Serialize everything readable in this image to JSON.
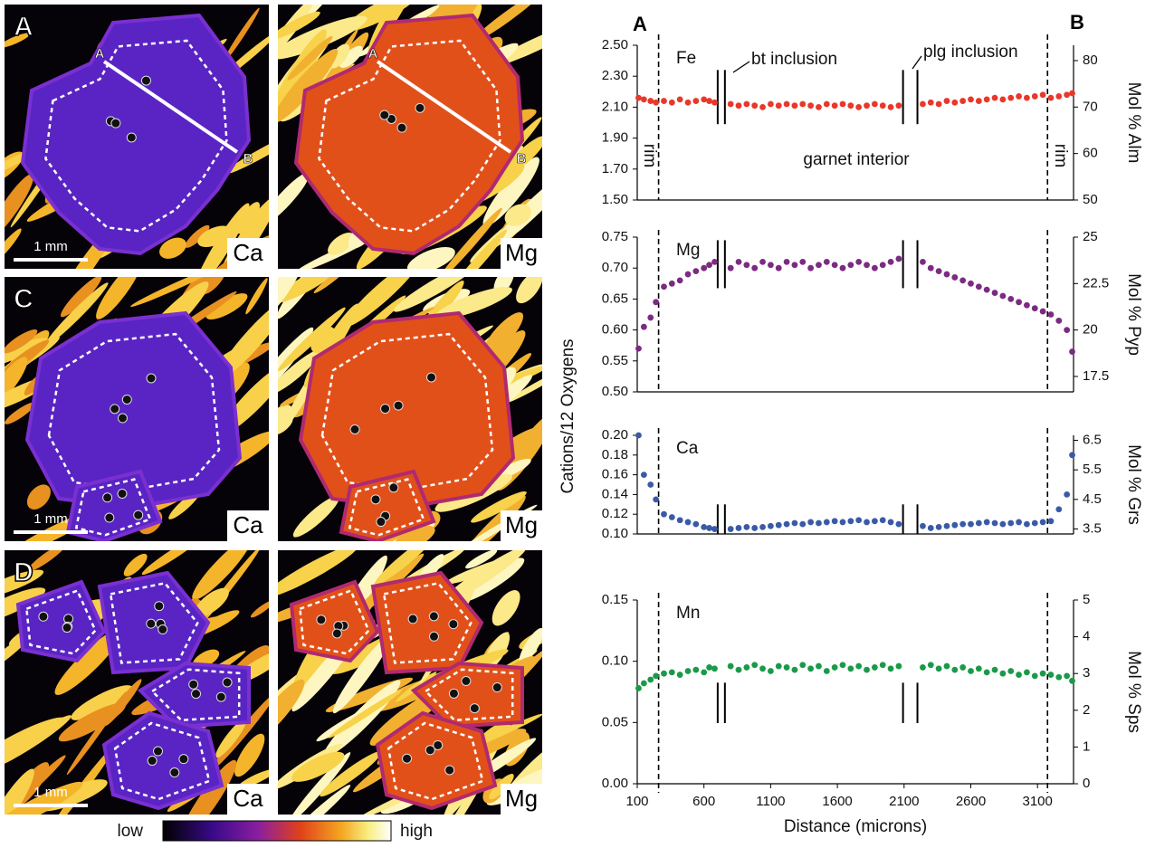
{
  "images": {
    "panels": [
      {
        "letter": "A",
        "maps": [
          {
            "element": "Ca",
            "scale": "1 mm",
            "profile": [
              "A",
              "B"
            ]
          },
          {
            "element": "Mg",
            "profile": [
              "A",
              "B"
            ]
          }
        ]
      },
      {
        "letter": "C",
        "maps": [
          {
            "element": "Ca",
            "scale": "1 mm"
          },
          {
            "element": "Mg"
          }
        ]
      },
      {
        "letter": "D",
        "maps": [
          {
            "element": "Ca",
            "scale": "1 mm"
          },
          {
            "element": "Mg"
          }
        ]
      }
    ],
    "colorbar": {
      "low": "low",
      "high": "high"
    }
  },
  "profile": {
    "start": "A",
    "end": "B",
    "ylabel": "Cations/12 Oxygens",
    "rim_boundaries": [
      260,
      3175
    ],
    "inclusion_gaps": [
      [
        703,
        757
      ],
      [
        2092,
        2200
      ]
    ]
  },
  "chart_data": [
    {
      "type": "scatter",
      "element": "Fe",
      "color": "#e8382a",
      "y2label": "Mol % Alm",
      "inclusion_labels": [
        "bt inclusion",
        "plg inclusion"
      ],
      "rim_labels": [
        "rim",
        "rim"
      ],
      "interior_label": "garnet interior",
      "xlim": [
        100,
        3370
      ],
      "ylim": [
        1.5,
        2.5
      ],
      "yticks": [
        {
          "value": 1.5,
          "label": "1.50"
        },
        {
          "value": 1.7,
          "label": "1.70"
        },
        {
          "value": 1.9,
          "label": "1.90"
        },
        {
          "value": 2.1,
          "label": "2.10"
        },
        {
          "value": 2.3,
          "label": "2.30"
        },
        {
          "value": 2.5,
          "label": "2.50"
        }
      ],
      "y2lim": [
        50,
        83.3
      ],
      "y2ticks": [
        50,
        60,
        70,
        80
      ],
      "x": [
        110,
        150,
        200,
        240,
        300,
        360,
        420,
        480,
        540,
        600,
        640,
        680,
        800,
        860,
        920,
        980,
        1040,
        1100,
        1160,
        1220,
        1280,
        1340,
        1400,
        1460,
        1520,
        1580,
        1640,
        1700,
        1760,
        1820,
        1880,
        1940,
        2000,
        2060,
        2240,
        2300,
        2360,
        2420,
        2480,
        2540,
        2600,
        2660,
        2720,
        2780,
        2840,
        2900,
        2960,
        3020,
        3080,
        3140,
        3200,
        3260,
        3320,
        3360
      ],
      "values": [
        2.16,
        2.15,
        2.14,
        2.13,
        2.14,
        2.13,
        2.15,
        2.13,
        2.14,
        2.15,
        2.14,
        2.13,
        2.12,
        2.11,
        2.12,
        2.11,
        2.1,
        2.12,
        2.11,
        2.12,
        2.11,
        2.12,
        2.11,
        2.1,
        2.12,
        2.11,
        2.12,
        2.11,
        2.1,
        2.11,
        2.12,
        2.11,
        2.1,
        2.11,
        2.12,
        2.13,
        2.12,
        2.14,
        2.13,
        2.14,
        2.15,
        2.14,
        2.15,
        2.16,
        2.15,
        2.16,
        2.17,
        2.16,
        2.17,
        2.18,
        2.16,
        2.17,
        2.18,
        2.19
      ]
    },
    {
      "type": "scatter",
      "element": "Mg",
      "color": "#7b2b82",
      "y2label": "Mol % Pyp",
      "xlim": [
        100,
        3370
      ],
      "ylim": [
        0.5,
        0.75
      ],
      "yticks": [
        {
          "value": 0.5,
          "label": "0.50"
        },
        {
          "value": 0.55,
          "label": "0.55"
        },
        {
          "value": 0.6,
          "label": "0.60"
        },
        {
          "value": 0.65,
          "label": "0.65"
        },
        {
          "value": 0.7,
          "label": "0.70"
        },
        {
          "value": 0.75,
          "label": "0.75"
        }
      ],
      "y2lim": [
        16.67,
        25
      ],
      "y2ticks": [
        17.5,
        20,
        22.5,
        25
      ],
      "x": [
        110,
        150,
        200,
        240,
        300,
        360,
        420,
        480,
        540,
        600,
        640,
        680,
        800,
        860,
        920,
        980,
        1040,
        1100,
        1160,
        1220,
        1280,
        1340,
        1400,
        1460,
        1520,
        1580,
        1640,
        1700,
        1760,
        1820,
        1880,
        1940,
        2000,
        2060,
        2240,
        2300,
        2360,
        2420,
        2480,
        2540,
        2600,
        2660,
        2720,
        2780,
        2840,
        2900,
        2960,
        3020,
        3080,
        3140,
        3200,
        3260,
        3320,
        3360
      ],
      "values": [
        0.57,
        0.605,
        0.62,
        0.645,
        0.67,
        0.675,
        0.68,
        0.69,
        0.695,
        0.7,
        0.705,
        0.71,
        0.7,
        0.71,
        0.705,
        0.7,
        0.71,
        0.705,
        0.7,
        0.71,
        0.705,
        0.71,
        0.7,
        0.705,
        0.71,
        0.705,
        0.7,
        0.705,
        0.71,
        0.705,
        0.7,
        0.705,
        0.71,
        0.715,
        0.71,
        0.7,
        0.695,
        0.69,
        0.685,
        0.68,
        0.675,
        0.67,
        0.665,
        0.66,
        0.655,
        0.65,
        0.645,
        0.64,
        0.635,
        0.63,
        0.625,
        0.615,
        0.6,
        0.565
      ]
    },
    {
      "type": "scatter",
      "element": "Ca",
      "color": "#3a5aa8",
      "y2label": "Mol % Grs",
      "xlim": [
        100,
        3370
      ],
      "ylim": [
        0.1,
        0.2
      ],
      "yticks": [
        {
          "value": 0.1,
          "label": "0.10"
        },
        {
          "value": 0.12,
          "label": "0.12"
        },
        {
          "value": 0.14,
          "label": "0.14"
        },
        {
          "value": 0.16,
          "label": "0.16"
        },
        {
          "value": 0.18,
          "label": "0.18"
        },
        {
          "value": 0.2,
          "label": "0.20"
        }
      ],
      "y2lim": [
        3.33,
        6.67
      ],
      "y2ticks": [
        3.5,
        4.5,
        5.5,
        6.5
      ],
      "x": [
        110,
        150,
        200,
        240,
        300,
        360,
        420,
        480,
        540,
        600,
        640,
        680,
        800,
        860,
        920,
        980,
        1040,
        1100,
        1160,
        1220,
        1280,
        1340,
        1400,
        1460,
        1520,
        1580,
        1640,
        1700,
        1760,
        1820,
        1880,
        1940,
        2000,
        2060,
        2240,
        2300,
        2360,
        2420,
        2480,
        2540,
        2600,
        2660,
        2720,
        2780,
        2840,
        2900,
        2960,
        3020,
        3080,
        3140,
        3200,
        3260,
        3320,
        3360
      ],
      "values": [
        0.2,
        0.16,
        0.15,
        0.135,
        0.12,
        0.117,
        0.114,
        0.112,
        0.11,
        0.107,
        0.106,
        0.105,
        0.105,
        0.106,
        0.107,
        0.106,
        0.107,
        0.108,
        0.109,
        0.11,
        0.111,
        0.11,
        0.112,
        0.111,
        0.112,
        0.113,
        0.112,
        0.113,
        0.114,
        0.112,
        0.113,
        0.114,
        0.112,
        0.11,
        0.108,
        0.106,
        0.107,
        0.108,
        0.109,
        0.11,
        0.11,
        0.111,
        0.112,
        0.111,
        0.11,
        0.111,
        0.112,
        0.11,
        0.111,
        0.112,
        0.113,
        0.125,
        0.14,
        0.18
      ]
    },
    {
      "type": "scatter",
      "element": "Mn",
      "color": "#1a9a48",
      "y2label": "Mol % Sps",
      "xlabel": "Distance (microns)",
      "xlim": [
        100,
        3370
      ],
      "xticks": [
        100,
        600,
        1100,
        1600,
        2100,
        2600,
        3100
      ],
      "ylim": [
        0,
        0.15
      ],
      "yticks": [
        {
          "value": 0,
          "label": "0.00"
        },
        {
          "value": 0.05,
          "label": "0.05"
        },
        {
          "value": 0.1,
          "label": "0.10"
        },
        {
          "value": 0.15,
          "label": "0.15"
        }
      ],
      "y2lim": [
        0,
        5
      ],
      "y2ticks": [
        0,
        1,
        2,
        3,
        4,
        5
      ],
      "x": [
        110,
        150,
        200,
        240,
        300,
        360,
        420,
        480,
        540,
        600,
        640,
        680,
        800,
        860,
        920,
        980,
        1040,
        1100,
        1160,
        1220,
        1280,
        1340,
        1400,
        1460,
        1520,
        1580,
        1640,
        1700,
        1760,
        1820,
        1880,
        1940,
        2000,
        2060,
        2240,
        2300,
        2360,
        2420,
        2480,
        2540,
        2600,
        2660,
        2720,
        2780,
        2840,
        2900,
        2960,
        3020,
        3080,
        3140,
        3200,
        3260,
        3320,
        3360
      ],
      "values": [
        0.078,
        0.082,
        0.085,
        0.088,
        0.09,
        0.091,
        0.089,
        0.092,
        0.093,
        0.091,
        0.095,
        0.094,
        0.096,
        0.093,
        0.095,
        0.097,
        0.094,
        0.092,
        0.096,
        0.095,
        0.093,
        0.097,
        0.094,
        0.096,
        0.092,
        0.095,
        0.097,
        0.094,
        0.096,
        0.093,
        0.095,
        0.097,
        0.094,
        0.096,
        0.095,
        0.097,
        0.094,
        0.096,
        0.093,
        0.095,
        0.092,
        0.094,
        0.091,
        0.093,
        0.09,
        0.092,
        0.089,
        0.091,
        0.088,
        0.09,
        0.089,
        0.087,
        0.088,
        0.084
      ]
    }
  ]
}
